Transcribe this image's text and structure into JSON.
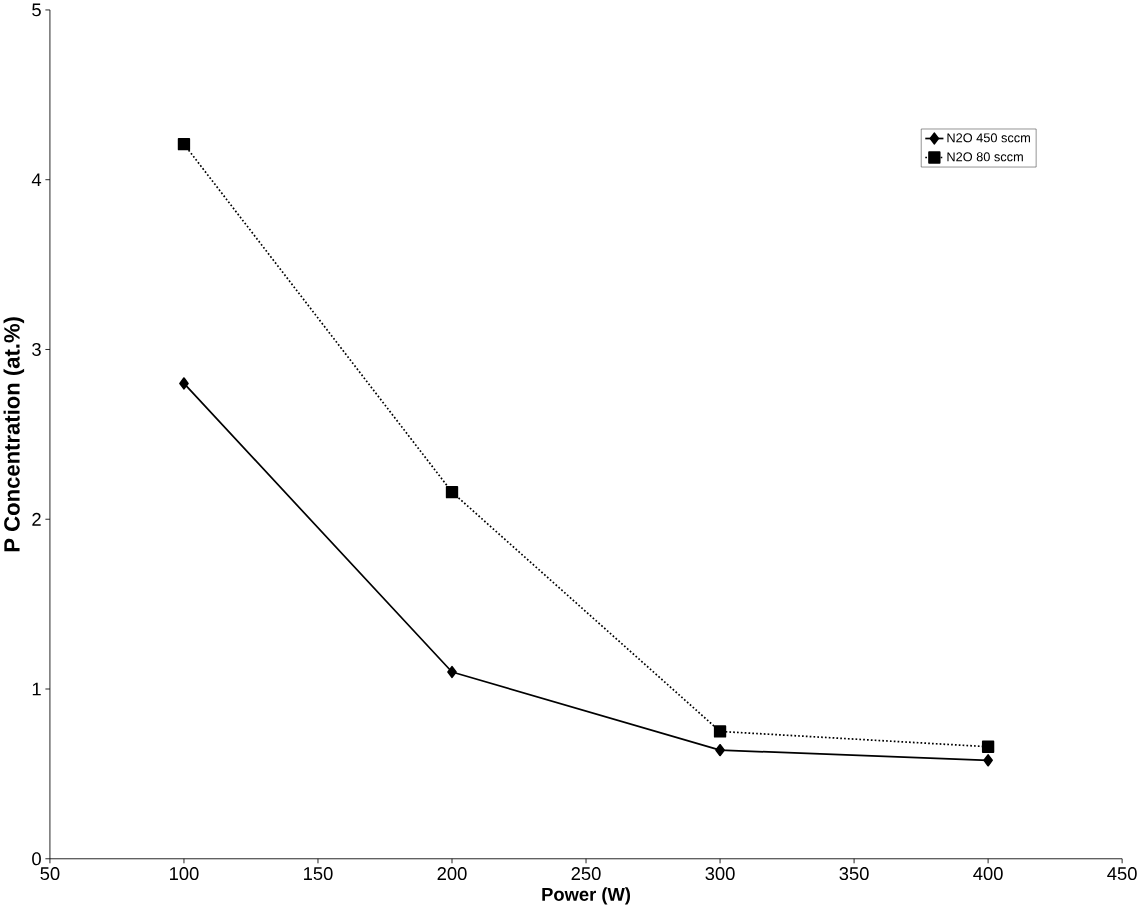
{
  "chart_data": {
    "type": "line",
    "xlabel": "Power (W)",
    "ylabel": "P Concentration (at.%)",
    "x": [
      100,
      200,
      300,
      400
    ],
    "series": [
      {
        "name": "N2O  450 sccm",
        "color": "#000000",
        "marker": "diamond",
        "line_style": "solid",
        "values": [
          2.8,
          1.1,
          0.64,
          0.58
        ]
      },
      {
        "name": "N2O  80 sccm",
        "color": "#000000",
        "marker": "square",
        "line_style": "dotted",
        "values": [
          4.21,
          2.16,
          0.75,
          0.66
        ]
      }
    ],
    "xlim": [
      50,
      450
    ],
    "xticks": [
      50,
      100,
      150,
      200,
      250,
      300,
      350,
      400,
      450
    ],
    "ylim": [
      0,
      5
    ],
    "yticks": [
      0,
      1,
      2,
      3,
      4,
      5
    ],
    "grid": false,
    "legend": "top right"
  }
}
